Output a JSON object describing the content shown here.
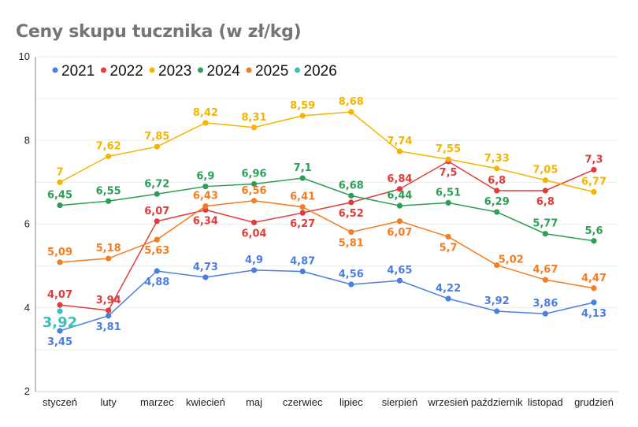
{
  "chart_data": {
    "type": "line",
    "title": "Ceny skupu tucznika (w zł/kg)",
    "xlabel": "",
    "ylabel": "",
    "ylim": [
      2,
      10
    ],
    "yticks": [
      "2",
      "4",
      "6",
      "8",
      "10"
    ],
    "grid": true,
    "legend_position": "top",
    "categories": [
      "styczeń",
      "luty",
      "marzec",
      "kwiecień",
      "maj",
      "czerwiec",
      "lipiec",
      "sierpień",
      "wrzesień",
      "październik",
      "listopad",
      "grudzień"
    ],
    "series": [
      {
        "name": "2021",
        "color": "#4a7ee0",
        "values": [
          3.45,
          3.81,
          4.88,
          4.73,
          4.9,
          4.87,
          4.56,
          4.65,
          4.22,
          3.92,
          3.86,
          4.13
        ],
        "labels": [
          "3,45",
          "3,81",
          "4,88",
          "4,73",
          "4,9",
          "4,87",
          "4,56",
          "4,65",
          "4,22",
          "3,92",
          "3,86",
          "4,13"
        ],
        "label_pos": [
          "below",
          "below",
          "below",
          "above",
          "above",
          "above",
          "above",
          "above",
          "above",
          "above",
          "above",
          "below"
        ]
      },
      {
        "name": "2022",
        "color": "#e03c3c",
        "values": [
          4.07,
          3.94,
          6.07,
          6.34,
          6.04,
          6.27,
          6.52,
          6.84,
          7.5,
          6.8,
          6.8,
          7.3
        ],
        "labels": [
          "4,07",
          "3,94",
          "6,07",
          "6,34",
          "6,04",
          "6,27",
          "6,52",
          "6,84",
          "7,5",
          "6,8",
          "6,8",
          "7,3"
        ],
        "label_pos": [
          "above",
          "above",
          "above",
          "below",
          "below",
          "below",
          "below",
          "above",
          "below",
          "above",
          "below",
          "above"
        ]
      },
      {
        "name": "2023",
        "color": "#f4b400",
        "values": [
          7,
          7.62,
          7.85,
          8.42,
          8.31,
          8.59,
          8.68,
          7.74,
          7.55,
          7.33,
          7.05,
          6.77
        ],
        "labels": [
          "7",
          "7,62",
          "7,85",
          "8,42",
          "8,31",
          "8,59",
          "8,68",
          "7,74",
          "7,55",
          "7,33",
          "7,05",
          "6,77"
        ],
        "label_pos": [
          "above",
          "above",
          "above",
          "above",
          "above",
          "above",
          "above",
          "above",
          "above",
          "above",
          "above",
          "above"
        ]
      },
      {
        "name": "2024",
        "color": "#2e9e57",
        "values": [
          6.45,
          6.55,
          6.72,
          6.9,
          6.96,
          7.1,
          6.68,
          6.44,
          6.51,
          6.29,
          5.77,
          5.6
        ],
        "labels": [
          "6,45",
          "6,55",
          "6,72",
          "6,9",
          "6,96",
          "7,1",
          "6,68",
          "6,44",
          "6,51",
          "6,29",
          "5,77",
          "5,6"
        ],
        "label_pos": [
          "above",
          "above",
          "above",
          "above",
          "above",
          "above",
          "above",
          "above",
          "above",
          "above",
          "above",
          "above"
        ]
      },
      {
        "name": "2025",
        "color": "#f57c1f",
        "values": [
          5.09,
          5.18,
          5.63,
          6.43,
          6.56,
          6.41,
          5.81,
          6.07,
          5.7,
          5.02,
          4.67,
          4.47
        ],
        "labels": [
          "5,09",
          "5,18",
          "5,63",
          "6,43",
          "6,56",
          "6,41",
          "5,81",
          "6,07",
          "5,7",
          "5,02",
          "4,67",
          "4,47"
        ],
        "label_pos": [
          "above",
          "above",
          "below",
          "above",
          "above",
          "above",
          "below",
          "below",
          "below",
          "right",
          "above",
          "above"
        ]
      },
      {
        "name": "2026",
        "color": "#3dbdbd",
        "values": [
          3.92,
          null,
          null,
          null,
          null,
          null,
          null,
          null,
          null,
          null,
          null,
          null
        ],
        "labels": [
          "3,92",
          "",
          "",
          "",
          "",
          "",
          "",
          "",
          "",
          "",
          "",
          ""
        ],
        "label_pos": [
          "below-large",
          "",
          "",
          "",
          "",
          "",
          "",
          "",
          "",
          "",
          "",
          ""
        ]
      }
    ]
  }
}
